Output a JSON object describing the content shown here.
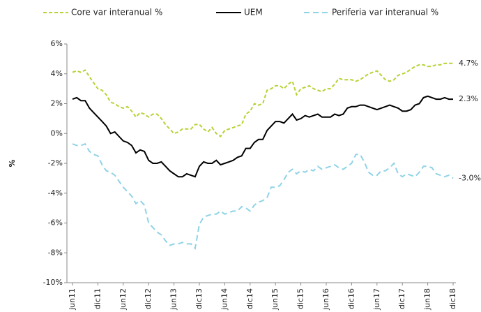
{
  "chart_data": {
    "type": "line",
    "ylabel": "%",
    "categories": [
      "jun11",
      null,
      null,
      null,
      null,
      null,
      "dic11",
      null,
      null,
      null,
      null,
      null,
      "jun12",
      null,
      null,
      null,
      null,
      null,
      "dic12",
      null,
      null,
      null,
      null,
      null,
      "jun13",
      null,
      null,
      null,
      null,
      null,
      "dic13",
      null,
      null,
      null,
      null,
      null,
      "jun14",
      null,
      null,
      null,
      null,
      null,
      "dic14",
      null,
      null,
      null,
      null,
      null,
      "jun15",
      null,
      null,
      null,
      null,
      null,
      "dic15",
      null,
      null,
      null,
      null,
      null,
      "jun16",
      null,
      null,
      null,
      null,
      null,
      "dic16",
      null,
      null,
      null,
      null,
      null,
      "jun17",
      null,
      null,
      null,
      null,
      null,
      "dic17",
      null,
      null,
      null,
      null,
      null,
      "jun18",
      null,
      null,
      null,
      null,
      null,
      "dic18"
    ],
    "series": [
      {
        "name": "Core var interanual %",
        "color": "#b5d334",
        "dash": "5,3",
        "values": [
          4.1,
          4.2,
          4.1,
          4.25,
          3.8,
          3.4,
          3.0,
          2.9,
          2.6,
          2.1,
          2.0,
          1.8,
          1.7,
          1.8,
          1.5,
          1.1,
          1.4,
          1.3,
          1.1,
          1.3,
          1.3,
          1.0,
          0.6,
          0.3,
          0.0,
          0.1,
          0.3,
          0.3,
          0.3,
          0.6,
          0.6,
          0.3,
          0.1,
          0.4,
          0.0,
          -0.2,
          0.2,
          0.3,
          0.4,
          0.5,
          0.6,
          1.3,
          1.5,
          2.0,
          1.9,
          2.0,
          2.9,
          3.0,
          3.2,
          3.2,
          3.0,
          3.3,
          3.5,
          2.6,
          3.0,
          3.1,
          3.2,
          3.0,
          2.9,
          2.8,
          3.0,
          3.0,
          3.3,
          3.7,
          3.6,
          3.6,
          3.6,
          3.5,
          3.6,
          3.8,
          4.0,
          4.1,
          4.2,
          3.9,
          3.6,
          3.5,
          3.6,
          3.9,
          4.0,
          4.1,
          4.3,
          4.5,
          4.6,
          4.6,
          4.5,
          4.5,
          4.6,
          4.6,
          4.7,
          4.7,
          4.7
        ],
        "value_labels": [
          null,
          null,
          null,
          null,
          null,
          null,
          null,
          null,
          null,
          null,
          null,
          null,
          null,
          null,
          null,
          null,
          null,
          null,
          null,
          null,
          null,
          null,
          null,
          null,
          null,
          null,
          null,
          null,
          null,
          null,
          null,
          null,
          null,
          null,
          null,
          null,
          null,
          null,
          null,
          null,
          null,
          null,
          null,
          null,
          null,
          null,
          null,
          null,
          null,
          null,
          null,
          null,
          null,
          null,
          null,
          null,
          null,
          null,
          null,
          null,
          null,
          null,
          null,
          null,
          null,
          null,
          null,
          null,
          null,
          null,
          null,
          null,
          null,
          null,
          null,
          null,
          null,
          null,
          null,
          null,
          null,
          null,
          null,
          null,
          null,
          null,
          null,
          null,
          null,
          null,
          "4.7%"
        ]
      },
      {
        "name": "UEM",
        "color": "#000000",
        "dash": null,
        "values": [
          2.3,
          2.4,
          2.2,
          2.2,
          1.7,
          1.4,
          1.1,
          0.8,
          0.5,
          0.0,
          0.1,
          -0.2,
          -0.5,
          -0.6,
          -0.8,
          -1.3,
          -1.1,
          -1.2,
          -1.8,
          -2.0,
          -2.0,
          -1.9,
          -2.2,
          -2.5,
          -2.7,
          -2.9,
          -2.9,
          -2.7,
          -2.8,
          -2.9,
          -2.2,
          -1.9,
          -2.0,
          -2.0,
          -1.8,
          -2.1,
          -2.0,
          -1.9,
          -1.8,
          -1.6,
          -1.5,
          -1.0,
          -1.0,
          -0.6,
          -0.4,
          -0.4,
          0.2,
          0.5,
          0.8,
          0.8,
          0.7,
          1.0,
          1.3,
          0.9,
          1.0,
          1.2,
          1.1,
          1.2,
          1.3,
          1.1,
          1.1,
          1.1,
          1.3,
          1.2,
          1.3,
          1.7,
          1.8,
          1.8,
          1.9,
          1.9,
          1.8,
          1.7,
          1.6,
          1.7,
          1.8,
          1.9,
          1.8,
          1.7,
          1.5,
          1.5,
          1.6,
          1.9,
          2.0,
          2.4,
          2.5,
          2.4,
          2.3,
          2.3,
          2.4,
          2.3,
          2.3
        ],
        "value_labels": [
          null,
          null,
          null,
          null,
          null,
          null,
          null,
          null,
          null,
          null,
          null,
          null,
          null,
          null,
          null,
          null,
          null,
          null,
          null,
          null,
          null,
          null,
          null,
          null,
          null,
          null,
          null,
          null,
          null,
          null,
          null,
          null,
          null,
          null,
          null,
          null,
          null,
          null,
          null,
          null,
          null,
          null,
          null,
          null,
          null,
          null,
          null,
          null,
          null,
          null,
          null,
          null,
          null,
          null,
          null,
          null,
          null,
          null,
          null,
          null,
          null,
          null,
          null,
          null,
          null,
          null,
          null,
          null,
          null,
          null,
          null,
          null,
          null,
          null,
          null,
          null,
          null,
          null,
          null,
          null,
          null,
          null,
          null,
          null,
          null,
          null,
          null,
          null,
          null,
          null,
          "2.3%"
        ]
      },
      {
        "name": "Periferia var interanual %",
        "color": "#8fd3e6",
        "dash": "8,5",
        "values": [
          -0.7,
          -0.8,
          -0.8,
          -0.7,
          -1.2,
          -1.4,
          -1.5,
          -2.1,
          -2.5,
          -2.6,
          -2.8,
          -3.2,
          -3.6,
          -3.9,
          -4.2,
          -4.7,
          -4.5,
          -4.8,
          -6.0,
          -6.3,
          -6.6,
          -6.8,
          -7.2,
          -7.5,
          -7.4,
          -7.4,
          -7.3,
          -7.4,
          -7.4,
          -7.7,
          -6.1,
          -5.6,
          -5.5,
          -5.4,
          -5.4,
          -5.2,
          -5.4,
          -5.3,
          -5.2,
          -5.2,
          -4.9,
          -5.0,
          -5.2,
          -4.8,
          -4.6,
          -4.5,
          -4.3,
          -3.6,
          -3.6,
          -3.5,
          -3.1,
          -2.6,
          -2.4,
          -2.7,
          -2.5,
          -2.6,
          -2.4,
          -2.5,
          -2.2,
          -2.4,
          -2.3,
          -2.2,
          -2.1,
          -2.3,
          -2.4,
          -2.2,
          -2.0,
          -1.4,
          -1.4,
          -1.9,
          -2.6,
          -2.8,
          -2.8,
          -2.5,
          -2.5,
          -2.3,
          -2.0,
          -2.7,
          -2.9,
          -2.7,
          -2.8,
          -2.9,
          -2.6,
          -2.2,
          -2.2,
          -2.3,
          -2.7,
          -2.8,
          -2.9,
          -2.8,
          -3.0
        ],
        "value_labels": [
          null,
          null,
          null,
          null,
          null,
          null,
          null,
          null,
          null,
          null,
          null,
          null,
          null,
          null,
          null,
          null,
          null,
          null,
          null,
          null,
          null,
          null,
          null,
          null,
          null,
          null,
          null,
          null,
          null,
          null,
          null,
          null,
          null,
          null,
          null,
          null,
          null,
          null,
          null,
          null,
          null,
          null,
          null,
          null,
          null,
          null,
          null,
          null,
          null,
          null,
          null,
          null,
          null,
          null,
          null,
          null,
          null,
          null,
          null,
          null,
          null,
          null,
          null,
          null,
          null,
          null,
          null,
          null,
          null,
          null,
          null,
          null,
          null,
          null,
          null,
          null,
          null,
          null,
          null,
          null,
          null,
          null,
          null,
          null,
          null,
          null,
          null,
          null,
          null,
          null,
          "-3.0%"
        ]
      }
    ],
    "ylim": [
      -10,
      6
    ],
    "yticks": [
      {
        "value": -10,
        "label": "-10%"
      },
      {
        "value": -8,
        "label": "-8%"
      },
      {
        "value": -6,
        "label": "-6%"
      },
      {
        "value": -4,
        "label": "-4%"
      },
      {
        "value": -2,
        "label": "-2%"
      },
      {
        "value": 0,
        "label": "0%"
      },
      {
        "value": 2,
        "label": "2%"
      },
      {
        "value": 4,
        "label": "4%"
      },
      {
        "value": 6,
        "label": "6%"
      }
    ],
    "grid": false
  }
}
